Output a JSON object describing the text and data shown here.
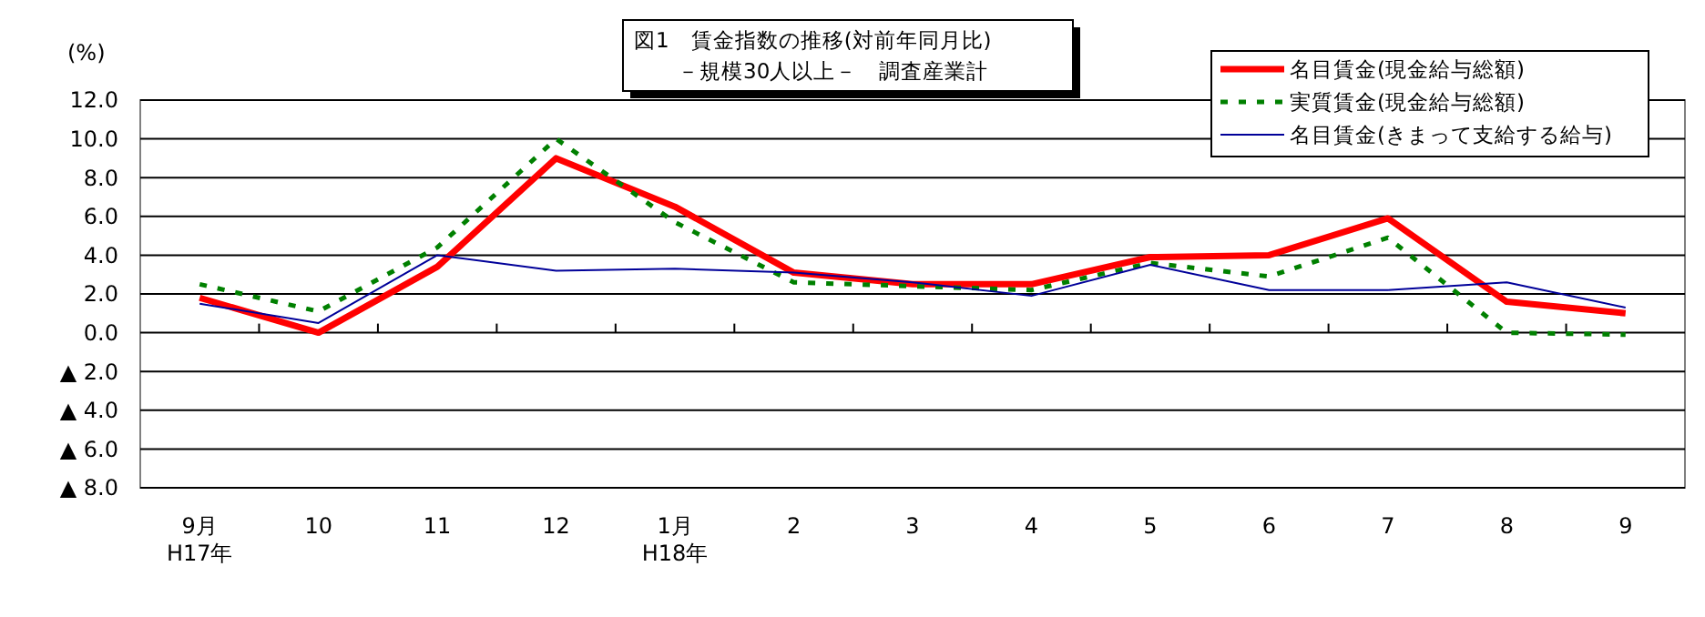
{
  "chart_data": {
    "type": "line",
    "title": "図1　賃金指数の推移(対前年同月比)",
    "subtitle": "－規模30人以上－　調査産業計",
    "ylabel": "(%)",
    "categories": [
      "9月\nH17年",
      "10",
      "11",
      "12",
      "1月\nH18年",
      "2",
      "3",
      "4",
      "5",
      "6",
      "7",
      "8",
      "9"
    ],
    "series": [
      {
        "name": "名目賃金(現金給与総額)",
        "color": "#ff0000",
        "values": [
          1.8,
          0.0,
          3.4,
          9.0,
          6.5,
          3.1,
          2.5,
          2.5,
          3.9,
          4.0,
          5.9,
          1.6,
          1.0
        ],
        "line_style": "solid"
      },
      {
        "name": "実質賃金(現金給与総額)",
        "color": "#008000",
        "values": [
          2.5,
          1.1,
          4.4,
          10.0,
          5.7,
          2.6,
          2.4,
          2.2,
          3.6,
          2.9,
          4.9,
          0.0,
          -0.1
        ],
        "line_style": "dashed"
      },
      {
        "name": "名目賃金(きまって支給する給与)",
        "color": "#000099",
        "values": [
          1.5,
          0.5,
          4.0,
          3.2,
          3.3,
          3.1,
          2.6,
          1.9,
          3.5,
          2.2,
          2.2,
          2.6,
          1.3
        ],
        "line_style": "solid"
      }
    ],
    "ylim": [
      -8,
      12
    ],
    "yticks": [
      {
        "value": 12,
        "label": "12.0"
      },
      {
        "value": 10,
        "label": "10.0"
      },
      {
        "value": 8,
        "label": "8.0"
      },
      {
        "value": 6,
        "label": "6.0"
      },
      {
        "value": 4,
        "label": "4.0"
      },
      {
        "value": 2,
        "label": "2.0"
      },
      {
        "value": 0,
        "label": "0.0"
      },
      {
        "value": -2,
        "label": "▲ 2.0"
      },
      {
        "value": -4,
        "label": "▲ 4.0"
      },
      {
        "value": -6,
        "label": "▲ 6.0"
      },
      {
        "value": -8,
        "label": "▲ 8.0"
      }
    ],
    "grid": "y",
    "legend": "top right"
  }
}
